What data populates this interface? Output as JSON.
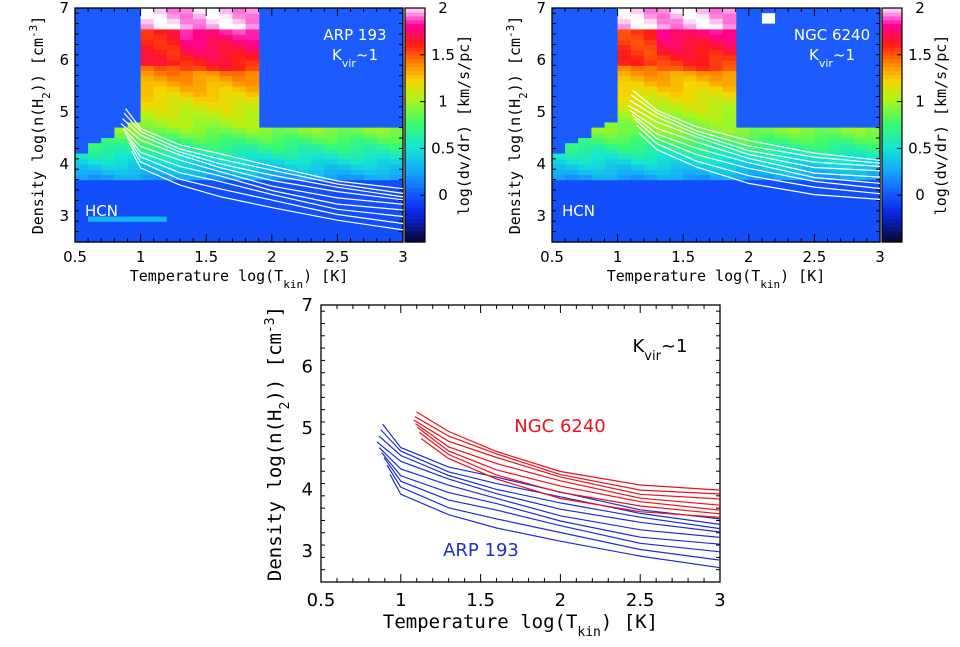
{
  "chart_data": [
    {
      "type": "heatmap",
      "panel": "top-left",
      "xlabel": "Temperature log(T_kin) [K]",
      "ylabel": "Density log(n(H2)) [cm^-3]",
      "xlim": [
        0.5,
        3.0
      ],
      "ylim": [
        2.5,
        7.0
      ],
      "xticks": [
        "0.5",
        "1",
        "1.5",
        "2",
        "2.5",
        "3"
      ],
      "yticks": [
        "3",
        "4",
        "5",
        "6",
        "7"
      ],
      "colorbar": {
        "label": "log(dv/dr) [km/s/pc]",
        "range": [
          -0.5,
          2.0
        ],
        "ticks": [
          "0",
          "0.5",
          "1",
          "1.5",
          "2"
        ]
      },
      "annotations": [
        "ARP 193",
        "K_vir~1",
        "HCN"
      ],
      "contour_color": "#ffffff",
      "contour_ridge": {
        "x": [
          0.85,
          1.0,
          1.3,
          1.6,
          2.0,
          2.5,
          3.0
        ],
        "y": [
          4.8,
          4.45,
          4.15,
          3.95,
          3.7,
          3.45,
          3.3
        ]
      }
    },
    {
      "type": "heatmap",
      "panel": "top-right",
      "xlabel": "Temperature log(T_kin) [K]",
      "ylabel": "Density log(n(H2)) [cm^-3]",
      "xlim": [
        0.5,
        3.0
      ],
      "ylim": [
        2.5,
        7.0
      ],
      "xticks": [
        "0.5",
        "1",
        "1.5",
        "2",
        "2.5",
        "3"
      ],
      "yticks": [
        "3",
        "4",
        "5",
        "6",
        "7"
      ],
      "colorbar": {
        "label": "log(dv/dr) [km/s/pc]",
        "range": [
          -0.5,
          2.0
        ],
        "ticks": [
          "0",
          "0.5",
          "1",
          "1.5",
          "2"
        ]
      },
      "annotations": [
        "NGC 6240",
        "K_vir~1",
        "HCN"
      ],
      "contour_color": "#ffffff",
      "contour_ridge": {
        "x": [
          1.08,
          1.3,
          1.6,
          2.0,
          2.5,
          3.0
        ],
        "y": [
          5.15,
          4.8,
          4.5,
          4.2,
          3.95,
          3.85
        ]
      }
    },
    {
      "type": "line",
      "panel": "bottom",
      "xlabel": "Temperature log(T_kin) [K]",
      "ylabel": "Density log(n(H2)) [cm^-3]",
      "xlim": [
        0.5,
        3.0
      ],
      "ylim": [
        2.5,
        7.0
      ],
      "xticks": [
        "0.5",
        "1",
        "1.5",
        "2",
        "2.5",
        "3"
      ],
      "yticks": [
        "3",
        "4",
        "5",
        "6",
        "7"
      ],
      "annotation": "K_vir~1",
      "series": [
        {
          "name": "NGC 6240",
          "color": "#e8131b",
          "ridge": {
            "x": [
              1.08,
              1.3,
              1.6,
              2.0,
              2.5,
              3.0
            ],
            "y": [
              5.15,
              4.8,
              4.5,
              4.2,
              3.95,
              3.85
            ]
          }
        },
        {
          "name": "ARP 193",
          "color": "#1f2ecc",
          "ridge": {
            "x": [
              0.85,
              1.0,
              1.3,
              1.6,
              2.0,
              2.5,
              3.0
            ],
            "y": [
              4.8,
              4.45,
              4.15,
              3.95,
              3.7,
              3.45,
              3.3
            ]
          }
        }
      ]
    }
  ],
  "labels": {
    "x_prefix": "Temperature log(T",
    "x_sub": "kin",
    "x_suffix": ") [K]",
    "y_prefix": "Density log(n(H",
    "y_sub": "2",
    "y_mid": ")) [cm",
    "y_sup": "-3",
    "y_suffix": "]",
    "cb_label": "log(dv/dr) [km/s/pc]",
    "arp": "ARP 193",
    "ngc": "NGC 6240",
    "hcn": "HCN",
    "k_main": "K",
    "k_sub": "vir",
    "k_suffix": "~1"
  }
}
